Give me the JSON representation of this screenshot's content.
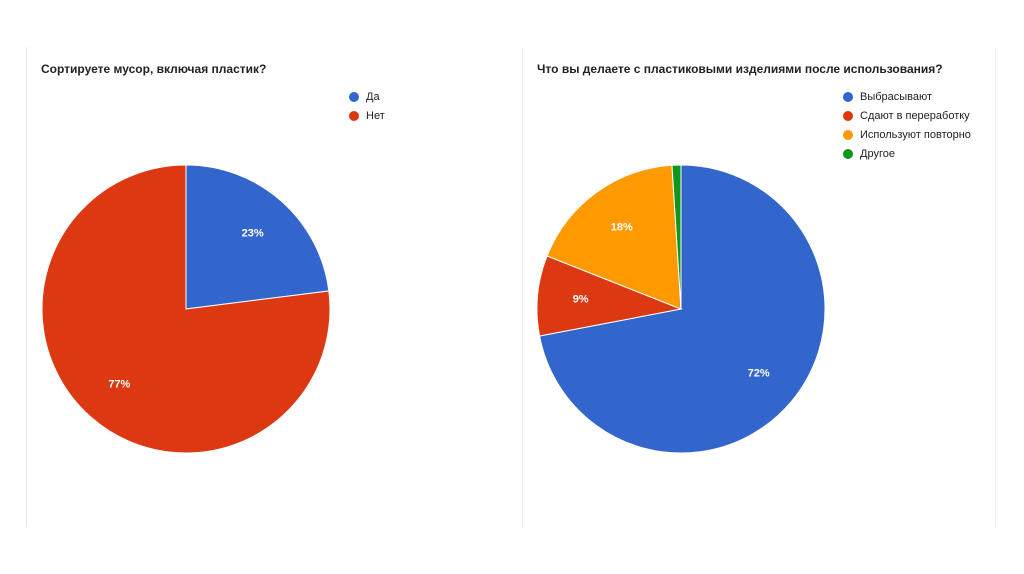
{
  "chart_data": [
    {
      "type": "pie",
      "title": "Сортируете мусор, включая пластик?",
      "categories": [
        "Да",
        "Нет"
      ],
      "values": [
        23,
        77
      ],
      "value_labels": [
        "23%",
        "77%"
      ],
      "colors": [
        "#3366cc",
        "#dc3912"
      ],
      "legend_position": "top-right"
    },
    {
      "type": "pie",
      "title": "Что вы делаете с пластиковыми изделиями после использования?",
      "categories": [
        "Выбрасывают",
        "Сдают в переработку",
        "Используют повторно",
        "Другое"
      ],
      "values": [
        72,
        9,
        18,
        1
      ],
      "value_labels": [
        "72%",
        "9%",
        "18%",
        ""
      ],
      "colors": [
        "#3366cc",
        "#dc3912",
        "#ff9900",
        "#109618"
      ],
      "legend_position": "top-right"
    }
  ]
}
